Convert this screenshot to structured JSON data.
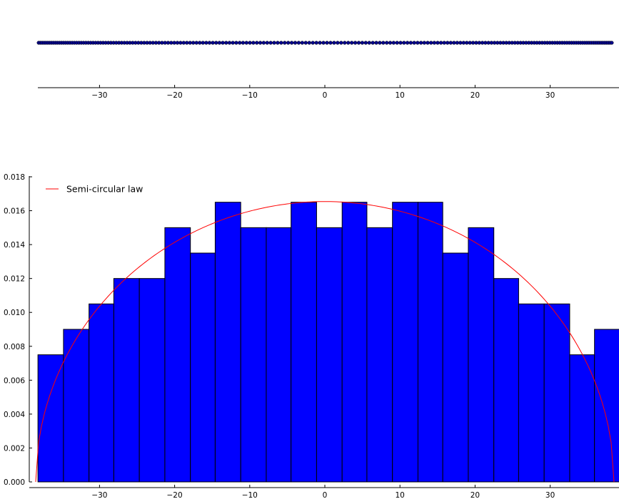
{
  "chart_data": [
    {
      "type": "scatter",
      "xlim": [
        -38.5,
        38.5
      ],
      "xticks": [
        -30,
        -20,
        -10,
        0,
        10,
        20,
        30
      ],
      "xtick_labels": [
        "−30",
        "−20",
        "−10",
        "0",
        "10",
        "20",
        "30"
      ],
      "y_constant": 0,
      "marker_color": "#00008b",
      "grid": false,
      "count": 200,
      "x_range": [
        -38.1,
        38.2
      ]
    },
    {
      "type": "bar",
      "subtype": "histogram",
      "bin_edges": [
        -38.2,
        -34.8,
        -31.4,
        -28.1,
        -24.7,
        -21.3,
        -17.9,
        -14.6,
        -11.2,
        -7.8,
        -4.5,
        -1.1,
        2.3,
        5.6,
        9.0,
        12.4,
        15.7,
        19.1,
        22.5,
        25.8,
        29.2,
        32.6,
        35.9,
        39.3
      ],
      "values": [
        0.0075,
        0.009,
        0.0105,
        0.012,
        0.012,
        0.015,
        0.0135,
        0.0165,
        0.015,
        0.015,
        0.0165,
        0.015,
        0.0165,
        0.015,
        0.0165,
        0.0165,
        0.0135,
        0.015,
        0.012,
        0.0105,
        0.0105,
        0.0075,
        0.009
      ],
      "bar_color": "#0000ff",
      "edge_color": "#000000",
      "xlim": [
        -38.5,
        38.5
      ],
      "ylim": [
        0,
        0.018
      ],
      "xticks": [
        -30,
        -20,
        -10,
        0,
        10,
        20,
        30
      ],
      "xtick_labels": [
        "−30",
        "−20",
        "−10",
        "0",
        "10",
        "20",
        "30"
      ],
      "yticks": [
        0,
        0.002,
        0.004,
        0.006,
        0.008,
        0.01,
        0.012,
        0.014,
        0.016,
        0.018
      ],
      "ytick_labels": [
        "0.000",
        "0.002",
        "0.004",
        "0.006",
        "0.008",
        "0.010",
        "0.012",
        "0.014",
        "0.016",
        "0.018"
      ],
      "grid": false,
      "legend": {
        "placement": "top-left",
        "entries": [
          "Semi-circular law"
        ]
      },
      "curve": {
        "label": "Semi-circular law",
        "type": "semicircle",
        "radius": 38.5,
        "peak": 0.01654,
        "color": "#ff0000"
      }
    }
  ]
}
